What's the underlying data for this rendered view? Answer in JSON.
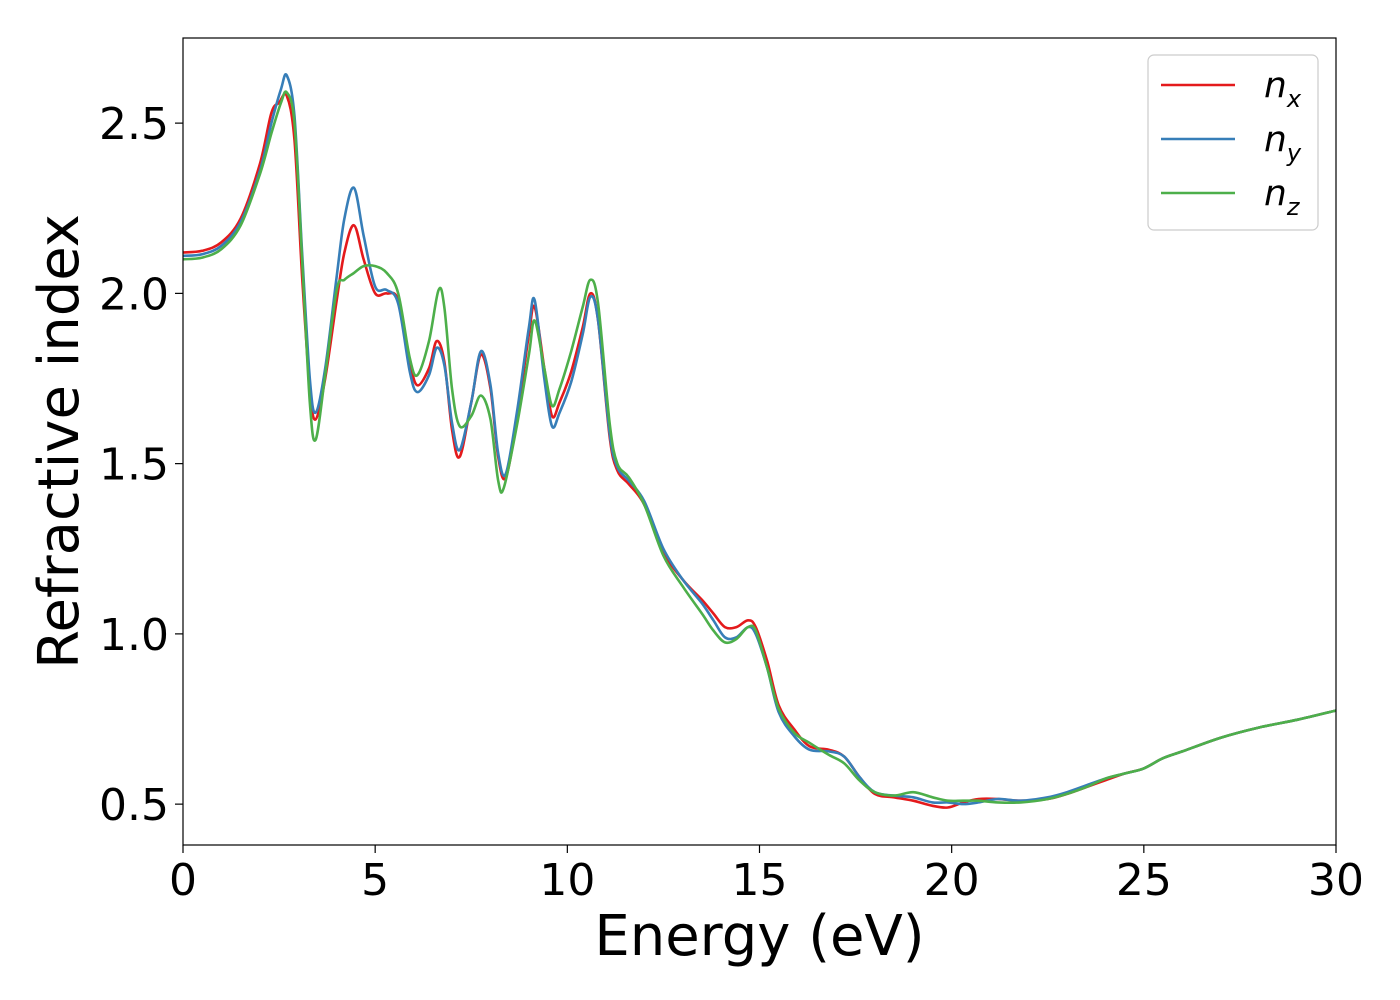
{
  "chart_data": {
    "type": "line",
    "xlabel": "Energy (eV)",
    "ylabel": "Refractive index",
    "xlim": [
      0,
      30
    ],
    "ylim": [
      0.38,
      2.75
    ],
    "xticks": [
      0,
      5,
      10,
      15,
      20,
      25,
      30
    ],
    "xtick_labels": [
      "0",
      "5",
      "10",
      "15",
      "20",
      "25",
      "30"
    ],
    "yticks": [
      0.5,
      1.0,
      1.5,
      2.0,
      2.5
    ],
    "ytick_labels": [
      "0.5",
      "1.0",
      "1.5",
      "2.0",
      "2.5"
    ],
    "grid": false,
    "legend_position": "top-right",
    "series": [
      {
        "name": "n",
        "subscript": "x",
        "color": "#e41a1c",
        "points": [
          [
            0,
            2.12
          ],
          [
            0.5,
            2.125
          ],
          [
            1,
            2.15
          ],
          [
            1.5,
            2.22
          ],
          [
            2,
            2.38
          ],
          [
            2.3,
            2.53
          ],
          [
            2.5,
            2.56
          ],
          [
            2.7,
            2.58
          ],
          [
            2.9,
            2.45
          ],
          [
            3.1,
            2.05
          ],
          [
            3.3,
            1.72
          ],
          [
            3.45,
            1.63
          ],
          [
            3.7,
            1.75
          ],
          [
            4.0,
            1.98
          ],
          [
            4.2,
            2.12
          ],
          [
            4.45,
            2.2
          ],
          [
            4.7,
            2.1
          ],
          [
            5.0,
            2.0
          ],
          [
            5.3,
            2.0
          ],
          [
            5.6,
            1.98
          ],
          [
            5.9,
            1.8
          ],
          [
            6.1,
            1.73
          ],
          [
            6.4,
            1.78
          ],
          [
            6.6,
            1.86
          ],
          [
            6.8,
            1.8
          ],
          [
            7.0,
            1.6
          ],
          [
            7.2,
            1.52
          ],
          [
            7.5,
            1.68
          ],
          [
            7.75,
            1.82
          ],
          [
            8.0,
            1.72
          ],
          [
            8.2,
            1.52
          ],
          [
            8.4,
            1.46
          ],
          [
            8.7,
            1.64
          ],
          [
            9.0,
            1.88
          ],
          [
            9.15,
            1.96
          ],
          [
            9.4,
            1.78
          ],
          [
            9.6,
            1.64
          ],
          [
            9.8,
            1.68
          ],
          [
            10.1,
            1.77
          ],
          [
            10.4,
            1.9
          ],
          [
            10.6,
            2.0
          ],
          [
            10.8,
            1.92
          ],
          [
            11.1,
            1.58
          ],
          [
            11.3,
            1.48
          ],
          [
            11.6,
            1.44
          ],
          [
            12.0,
            1.38
          ],
          [
            12.5,
            1.24
          ],
          [
            13.0,
            1.16
          ],
          [
            13.5,
            1.1
          ],
          [
            13.8,
            1.06
          ],
          [
            14.1,
            1.02
          ],
          [
            14.4,
            1.02
          ],
          [
            14.7,
            1.04
          ],
          [
            14.9,
            1.02
          ],
          [
            15.2,
            0.92
          ],
          [
            15.5,
            0.79
          ],
          [
            15.9,
            0.72
          ],
          [
            16.3,
            0.67
          ],
          [
            16.8,
            0.66
          ],
          [
            17.2,
            0.64
          ],
          [
            17.6,
            0.58
          ],
          [
            18.0,
            0.53
          ],
          [
            18.5,
            0.52
          ],
          [
            19.0,
            0.51
          ],
          [
            19.5,
            0.495
          ],
          [
            19.9,
            0.49
          ],
          [
            20.3,
            0.505
          ],
          [
            20.7,
            0.515
          ],
          [
            21.2,
            0.515
          ],
          [
            21.8,
            0.51
          ],
          [
            22.5,
            0.515
          ],
          [
            23.0,
            0.53
          ],
          [
            23.5,
            0.55
          ],
          [
            24.0,
            0.57
          ],
          [
            24.5,
            0.59
          ],
          [
            25.0,
            0.605
          ],
          [
            25.5,
            0.635
          ],
          [
            26.0,
            0.655
          ],
          [
            27.0,
            0.695
          ],
          [
            28.0,
            0.725
          ],
          [
            29.0,
            0.748
          ],
          [
            30.0,
            0.775
          ]
        ]
      },
      {
        "name": "n",
        "subscript": "y",
        "color": "#377eb8",
        "points": [
          [
            0,
            2.11
          ],
          [
            0.5,
            2.115
          ],
          [
            1,
            2.14
          ],
          [
            1.5,
            2.21
          ],
          [
            2,
            2.36
          ],
          [
            2.3,
            2.5
          ],
          [
            2.55,
            2.6
          ],
          [
            2.7,
            2.64
          ],
          [
            2.9,
            2.52
          ],
          [
            3.1,
            2.12
          ],
          [
            3.3,
            1.75
          ],
          [
            3.45,
            1.65
          ],
          [
            3.7,
            1.78
          ],
          [
            4.0,
            2.05
          ],
          [
            4.2,
            2.22
          ],
          [
            4.45,
            2.31
          ],
          [
            4.7,
            2.17
          ],
          [
            5.0,
            2.02
          ],
          [
            5.3,
            2.01
          ],
          [
            5.6,
            1.97
          ],
          [
            5.9,
            1.77
          ],
          [
            6.1,
            1.71
          ],
          [
            6.4,
            1.76
          ],
          [
            6.6,
            1.84
          ],
          [
            6.8,
            1.79
          ],
          [
            7.0,
            1.62
          ],
          [
            7.2,
            1.54
          ],
          [
            7.5,
            1.68
          ],
          [
            7.75,
            1.83
          ],
          [
            8.0,
            1.73
          ],
          [
            8.2,
            1.53
          ],
          [
            8.4,
            1.47
          ],
          [
            8.7,
            1.66
          ],
          [
            9.0,
            1.9
          ],
          [
            9.15,
            1.98
          ],
          [
            9.4,
            1.75
          ],
          [
            9.6,
            1.61
          ],
          [
            9.8,
            1.65
          ],
          [
            10.1,
            1.74
          ],
          [
            10.4,
            1.88
          ],
          [
            10.6,
            1.99
          ],
          [
            10.8,
            1.92
          ],
          [
            11.1,
            1.59
          ],
          [
            11.3,
            1.49
          ],
          [
            11.6,
            1.45
          ],
          [
            12.0,
            1.39
          ],
          [
            12.5,
            1.25
          ],
          [
            13.0,
            1.16
          ],
          [
            13.5,
            1.09
          ],
          [
            13.8,
            1.04
          ],
          [
            14.1,
            0.99
          ],
          [
            14.4,
            0.99
          ],
          [
            14.7,
            1.02
          ],
          [
            14.9,
            1.0
          ],
          [
            15.2,
            0.9
          ],
          [
            15.5,
            0.77
          ],
          [
            15.9,
            0.7
          ],
          [
            16.3,
            0.66
          ],
          [
            16.8,
            0.655
          ],
          [
            17.2,
            0.64
          ],
          [
            17.6,
            0.58
          ],
          [
            18.0,
            0.535
          ],
          [
            18.5,
            0.525
          ],
          [
            19.0,
            0.52
          ],
          [
            19.5,
            0.505
          ],
          [
            19.9,
            0.505
          ],
          [
            20.3,
            0.5
          ],
          [
            20.7,
            0.505
          ],
          [
            21.2,
            0.515
          ],
          [
            21.8,
            0.51
          ],
          [
            22.5,
            0.52
          ],
          [
            23.0,
            0.535
          ],
          [
            23.5,
            0.555
          ],
          [
            24.0,
            0.575
          ],
          [
            24.5,
            0.59
          ],
          [
            25.0,
            0.605
          ],
          [
            25.5,
            0.635
          ],
          [
            26.0,
            0.655
          ],
          [
            27.0,
            0.695
          ],
          [
            28.0,
            0.725
          ],
          [
            29.0,
            0.748
          ],
          [
            30.0,
            0.775
          ]
        ]
      },
      {
        "name": "n",
        "subscript": "z",
        "color": "#4daf4a",
        "points": [
          [
            0,
            2.1
          ],
          [
            0.5,
            2.105
          ],
          [
            1,
            2.13
          ],
          [
            1.5,
            2.2
          ],
          [
            2,
            2.35
          ],
          [
            2.3,
            2.47
          ],
          [
            2.55,
            2.56
          ],
          [
            2.7,
            2.59
          ],
          [
            2.9,
            2.5
          ],
          [
            3.1,
            2.1
          ],
          [
            3.3,
            1.68
          ],
          [
            3.45,
            1.57
          ],
          [
            3.7,
            1.76
          ],
          [
            4.0,
            2.01
          ],
          [
            4.2,
            2.04
          ],
          [
            4.45,
            2.06
          ],
          [
            4.7,
            2.08
          ],
          [
            5.0,
            2.08
          ],
          [
            5.3,
            2.06
          ],
          [
            5.6,
            2.0
          ],
          [
            5.9,
            1.81
          ],
          [
            6.1,
            1.76
          ],
          [
            6.4,
            1.86
          ],
          [
            6.65,
            2.01
          ],
          [
            6.8,
            1.96
          ],
          [
            7.0,
            1.72
          ],
          [
            7.2,
            1.61
          ],
          [
            7.5,
            1.64
          ],
          [
            7.75,
            1.7
          ],
          [
            8.0,
            1.63
          ],
          [
            8.2,
            1.45
          ],
          [
            8.35,
            1.43
          ],
          [
            8.7,
            1.62
          ],
          [
            9.0,
            1.82
          ],
          [
            9.15,
            1.92
          ],
          [
            9.4,
            1.78
          ],
          [
            9.6,
            1.67
          ],
          [
            9.8,
            1.72
          ],
          [
            10.1,
            1.83
          ],
          [
            10.4,
            1.96
          ],
          [
            10.6,
            2.04
          ],
          [
            10.8,
            1.97
          ],
          [
            11.1,
            1.62
          ],
          [
            11.3,
            1.5
          ],
          [
            11.6,
            1.46
          ],
          [
            12.0,
            1.38
          ],
          [
            12.5,
            1.23
          ],
          [
            13.0,
            1.14
          ],
          [
            13.5,
            1.06
          ],
          [
            13.8,
            1.01
          ],
          [
            14.1,
            0.975
          ],
          [
            14.4,
            0.985
          ],
          [
            14.7,
            1.02
          ],
          [
            14.9,
            1.01
          ],
          [
            15.2,
            0.9
          ],
          [
            15.5,
            0.78
          ],
          [
            15.9,
            0.71
          ],
          [
            16.3,
            0.68
          ],
          [
            16.8,
            0.645
          ],
          [
            17.2,
            0.62
          ],
          [
            17.6,
            0.57
          ],
          [
            18.0,
            0.535
          ],
          [
            18.5,
            0.525
          ],
          [
            19.0,
            0.535
          ],
          [
            19.5,
            0.52
          ],
          [
            19.9,
            0.51
          ],
          [
            20.3,
            0.51
          ],
          [
            20.7,
            0.51
          ],
          [
            21.2,
            0.505
          ],
          [
            21.8,
            0.505
          ],
          [
            22.5,
            0.515
          ],
          [
            23.0,
            0.53
          ],
          [
            23.5,
            0.55
          ],
          [
            24.0,
            0.575
          ],
          [
            24.5,
            0.59
          ],
          [
            25.0,
            0.605
          ],
          [
            25.5,
            0.635
          ],
          [
            26.0,
            0.655
          ],
          [
            27.0,
            0.695
          ],
          [
            28.0,
            0.725
          ],
          [
            29.0,
            0.748
          ],
          [
            30.0,
            0.775
          ]
        ]
      }
    ]
  }
}
